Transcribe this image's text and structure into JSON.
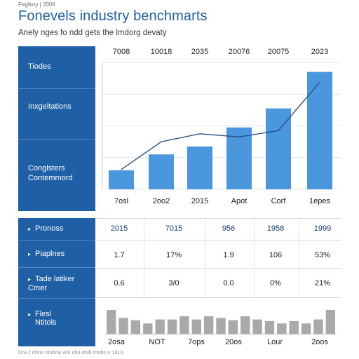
{
  "header": {
    "kicker": "Fegtkny | 2006",
    "title": "Fonevels industry benchmarts",
    "subtitle": "Anely nges fo ndd gets the lmdorg devaty"
  },
  "sidebar_top": {
    "labels": [
      "Tiodes",
      "Inxgeltations",
      "Conglsters",
      "Contemmord"
    ]
  },
  "sidebar_bottom": {
    "labels": [
      "Pronoss",
      "Piaplnes",
      "Tade latiker",
      "Cmer",
      "Flesl",
      "Ntitols"
    ]
  },
  "chart_data": {
    "type": "bar",
    "title": "Fonevels industry benchmarts",
    "column_headers": [
      "7008",
      "10018",
      "2035",
      "20076",
      "20075",
      "2023"
    ],
    "categories": [
      "7osl",
      "2oo2",
      "2015",
      "Apot",
      "Corf",
      "1epes"
    ],
    "series": [
      {
        "values": [
          24,
          44,
          54,
          78,
          102,
          148
        ]
      },
      {
        "values": [
          25,
          60,
          70,
          66,
          74,
          135
        ]
      }
    ],
    "ylim": [
      0,
      160
    ],
    "grid": true,
    "colors": {
      "bar": "#4a97de",
      "line": "#2e4f86",
      "grid": "#e6e6e6"
    }
  },
  "table": {
    "headers": [
      "2015",
      "7015",
      "956",
      "1958",
      "1999"
    ],
    "rows": [
      [
        "1.7",
        "17%",
        "1.9",
        "106",
        "53%"
      ],
      [
        "0.6",
        "3/0",
        "0.0",
        "0%",
        "21%"
      ]
    ]
  },
  "sparkline": {
    "values": [
      30,
      20,
      17,
      13,
      18,
      18,
      22,
      18,
      22,
      20,
      17,
      22,
      18,
      16,
      13,
      16,
      13,
      18,
      30
    ],
    "labels": [
      "2osa",
      "NOT",
      "7ops",
      "20os",
      "Lour",
      "2oos"
    ],
    "color": "#a9a9a9"
  },
  "footer": {
    "text": "Dnu f rlhnn nhdma vlnl ohe dnlll rnnbs n 1910"
  }
}
